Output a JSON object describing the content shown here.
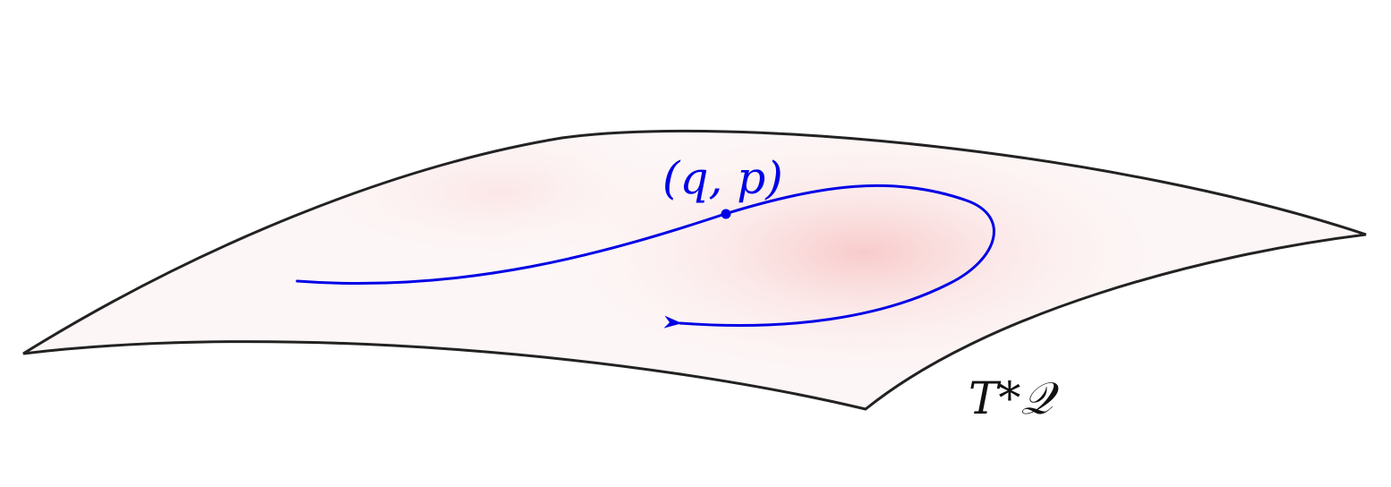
{
  "manifold": {
    "label": "T*𝒬",
    "outline_color": "#222222",
    "shade_color": "#f7cccc"
  },
  "trajectory": {
    "color": "#0000e6"
  },
  "point": {
    "label": "(q, p)"
  }
}
